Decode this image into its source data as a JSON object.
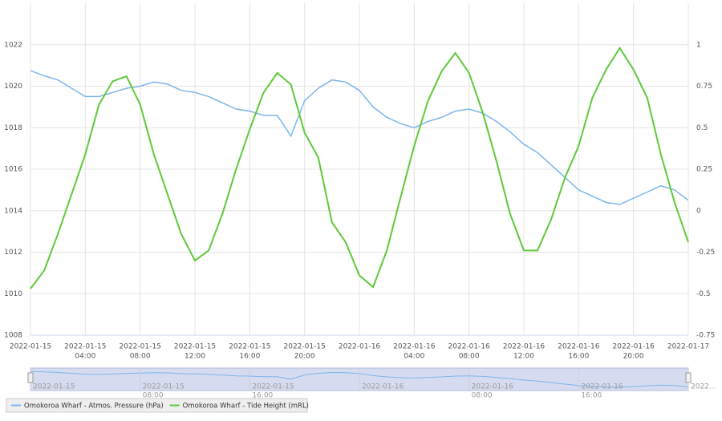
{
  "chart_data": {
    "type": "line",
    "x": [
      "2022-01-15 00:00",
      "2022-01-15 01:00",
      "2022-01-15 02:00",
      "2022-01-15 03:00",
      "2022-01-15 04:00",
      "2022-01-15 05:00",
      "2022-01-15 06:00",
      "2022-01-15 07:00",
      "2022-01-15 08:00",
      "2022-01-15 09:00",
      "2022-01-15 10:00",
      "2022-01-15 11:00",
      "2022-01-15 12:00",
      "2022-01-15 13:00",
      "2022-01-15 14:00",
      "2022-01-15 15:00",
      "2022-01-15 16:00",
      "2022-01-15 17:00",
      "2022-01-15 18:00",
      "2022-01-15 19:00",
      "2022-01-15 20:00",
      "2022-01-15 21:00",
      "2022-01-15 22:00",
      "2022-01-15 23:00",
      "2022-01-16 00:00",
      "2022-01-16 01:00",
      "2022-01-16 02:00",
      "2022-01-16 03:00",
      "2022-01-16 04:00",
      "2022-01-16 05:00",
      "2022-01-16 06:00",
      "2022-01-16 07:00",
      "2022-01-16 08:00",
      "2022-01-16 09:00",
      "2022-01-16 10:00",
      "2022-01-16 11:00",
      "2022-01-16 12:00",
      "2022-01-16 13:00",
      "2022-01-16 14:00",
      "2022-01-16 15:00",
      "2022-01-16 16:00",
      "2022-01-16 17:00",
      "2022-01-16 18:00",
      "2022-01-16 19:00",
      "2022-01-16 20:00",
      "2022-01-16 21:00",
      "2022-01-16 22:00",
      "2022-01-16 23:00",
      "2022-01-17 00:00"
    ],
    "series": [
      {
        "name": "Omokoroa Wharf - Atmos. Pressure (hPa)",
        "color": "#7cb5ec",
        "axis": "y",
        "values": [
          1020.75,
          1020.5,
          1020.3,
          1019.9,
          1019.5,
          1019.5,
          1019.7,
          1019.9,
          1020.0,
          1020.2,
          1020.1,
          1019.8,
          1019.7,
          1019.5,
          1019.2,
          1018.9,
          1018.8,
          1018.6,
          1018.6,
          1017.6,
          1019.3,
          1019.9,
          1020.3,
          1020.2,
          1019.8,
          1019.0,
          1018.5,
          1018.2,
          1018.0,
          1018.3,
          1018.5,
          1018.8,
          1018.9,
          1018.7,
          1018.3,
          1017.8,
          1017.2,
          1016.8,
          1016.2,
          1015.6,
          1015.0,
          1014.7,
          1014.4,
          1014.3,
          1014.6,
          1014.9,
          1015.2,
          1015.0,
          1014.5
        ]
      },
      {
        "name": "Omokoroa Wharf - Tide Height (mRL)",
        "color": "#5ec93a",
        "axis": "y2",
        "values": [
          -0.47,
          -0.36,
          -0.14,
          0.1,
          0.34,
          0.64,
          0.78,
          0.81,
          0.64,
          0.34,
          0.1,
          -0.14,
          -0.3,
          -0.24,
          -0.02,
          0.25,
          0.49,
          0.71,
          0.83,
          0.76,
          0.47,
          0.32,
          -0.07,
          -0.19,
          -0.39,
          -0.46,
          -0.24,
          0.08,
          0.39,
          0.66,
          0.84,
          0.95,
          0.83,
          0.59,
          0.3,
          -0.02,
          -0.24,
          -0.24,
          -0.05,
          0.2,
          0.39,
          0.68,
          0.85,
          0.98,
          0.85,
          0.68,
          0.34,
          0.05,
          -0.19
        ]
      }
    ],
    "ylim": [
      1008,
      1024
    ],
    "yticks": [
      1008,
      1010,
      1012,
      1014,
      1016,
      1018,
      1020,
      1022
    ],
    "y2lim": [
      -0.75,
      1.25
    ],
    "y2ticks": [
      -0.75,
      -0.5,
      -0.25,
      0,
      0.25,
      0.5,
      0.75,
      1
    ],
    "xticks": [
      {
        "value": "2022-01-15 00:00",
        "label": "2022-01-15"
      },
      {
        "value": "2022-01-15 04:00",
        "label": "2022-01-15",
        "time": "04:00"
      },
      {
        "value": "2022-01-15 08:00",
        "label": "2022-01-15",
        "time": "08:00"
      },
      {
        "value": "2022-01-15 12:00",
        "label": "2022-01-15",
        "time": "12:00"
      },
      {
        "value": "2022-01-15 16:00",
        "label": "2022-01-15",
        "time": "16:00"
      },
      {
        "value": "2022-01-15 20:00",
        "label": "2022-01-15",
        "time": "20:00"
      },
      {
        "value": "2022-01-16 00:00",
        "label": "2022-01-16"
      },
      {
        "value": "2022-01-16 04:00",
        "label": "2022-01-16",
        "time": "04:00"
      },
      {
        "value": "2022-01-16 08:00",
        "label": "2022-01-16",
        "time": "08:00"
      },
      {
        "value": "2022-01-16 12:00",
        "label": "2022-01-16",
        "time": "12:00"
      },
      {
        "value": "2022-01-16 16:00",
        "label": "2022-01-16",
        "time": "16:00"
      },
      {
        "value": "2022-01-16 20:00",
        "label": "2022-01-16",
        "time": "20:00"
      },
      {
        "value": "2022-01-17 00:00",
        "label": "2022-01-17"
      }
    ],
    "grid": true,
    "navigator": {
      "xticks": [
        {
          "value": "2022-01-15 00:00",
          "label": "2022-01-15"
        },
        {
          "value": "2022-01-15 08:00",
          "label": "2022-01-15",
          "time": "08:00"
        },
        {
          "value": "2022-01-15 16:00",
          "label": "2022-01-15",
          "time": "16:00"
        },
        {
          "value": "2022-01-16 00:00",
          "label": "2022-01-16"
        },
        {
          "value": "2022-01-16 08:00",
          "label": "2022-01-16",
          "time": "08:00"
        },
        {
          "value": "2022-01-16 16:00",
          "label": "2022-01-16",
          "time": "16:00"
        },
        {
          "value": "2022-01-17 00:00",
          "label": "2022..."
        }
      ]
    },
    "legend": "bottom-left"
  }
}
